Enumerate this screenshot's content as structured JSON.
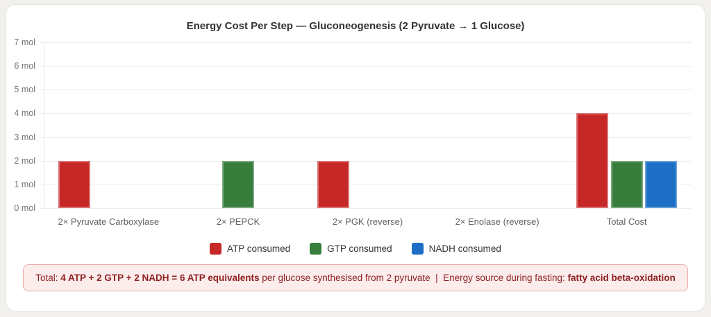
{
  "chart_data": {
    "type": "bar",
    "title": "Energy Cost Per Step — Gluconeogenesis (2 Pyruvate → 1 Glucose)",
    "categories": [
      "2× Pyruvate Carboxylase",
      "2× PEPCK",
      "2× PGK (reverse)",
      "2× Enolase (reverse)",
      "Total Cost"
    ],
    "series": [
      {
        "name": "ATP consumed",
        "color": "#c62828",
        "values": [
          2,
          0,
          2,
          0,
          4
        ]
      },
      {
        "name": "GTP consumed",
        "color": "#377e3c",
        "values": [
          0,
          2,
          0,
          0,
          2
        ]
      },
      {
        "name": "NADH consumed",
        "color": "#1c6fc4",
        "values": [
          0,
          0,
          0,
          0,
          2
        ]
      }
    ],
    "unit": "mol",
    "y_ticks": [
      "0 mol",
      "1 mol",
      "2 mol",
      "3 mol",
      "4 mol",
      "5 mol",
      "6 mol",
      "7 mol"
    ],
    "ylim": [
      0,
      7
    ],
    "grid": true,
    "legend_position": "bottom"
  },
  "note": {
    "segments": [
      {
        "text": "Total: ",
        "bold": false
      },
      {
        "text": "4 ATP + 2 GTP + 2 NADH = 6 ATP equivalents",
        "bold": true
      },
      {
        "text": " per glucose synthesised from 2 pyruvate  |  Energy source during fasting: ",
        "bold": false
      },
      {
        "text": "fatty acid beta-oxidation",
        "bold": true
      }
    ]
  },
  "colors": {
    "page_background": "#f1f0ec",
    "card_background": "#ffffff",
    "note_background": "#fcecec",
    "note_border": "#eba7a7",
    "note_text": "#8e2121",
    "atp_red": "#c62828",
    "gtp_green": "#377e3c",
    "nadh_blue": "#1c6fc4"
  }
}
